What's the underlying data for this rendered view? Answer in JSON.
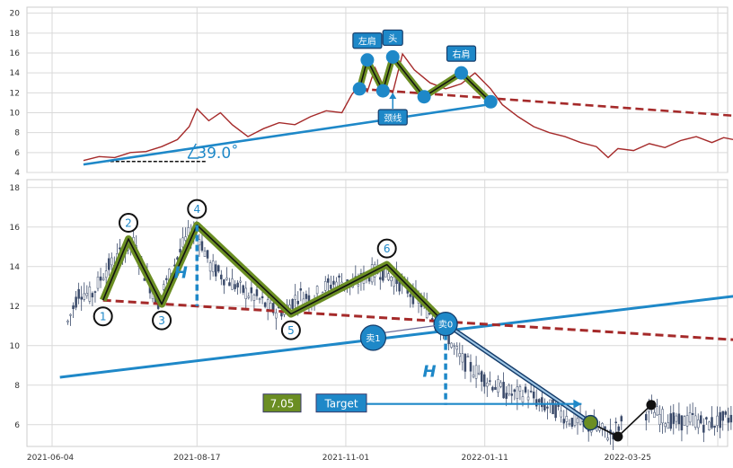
{
  "colors": {
    "price_line": "#a52a2a",
    "neckline": "#a52a2a",
    "trendline": "#1e88c8",
    "pattern_outer": "#6b8e23",
    "pattern_inner": "#111111",
    "candle_up": "#ffffff",
    "candle_down": "#3a4a6a",
    "grid": "#d9d9d9",
    "blue_label": "#1e88c8",
    "green_label": "#6b8e23"
  },
  "chart_data": [
    {
      "type": "line",
      "title": "",
      "x_range": [
        "2021-06-04",
        "2022-05-20"
      ],
      "ylim": [
        4,
        20
      ],
      "yticks": [
        "4",
        "6",
        "8",
        "10",
        "12",
        "14",
        "16",
        "18",
        "20"
      ],
      "grid": true,
      "series": [
        {
          "values": [
            [
              "2021-06-20",
              5.2
            ],
            [
              "2021-06-28",
              5.6
            ],
            [
              "2021-07-06",
              5.5
            ],
            [
              "2021-07-14",
              6.0
            ],
            [
              "2021-07-22",
              6.1
            ],
            [
              "2021-07-30",
              6.6
            ],
            [
              "2021-08-07",
              7.3
            ],
            [
              "2021-08-13",
              8.6
            ],
            [
              "2021-08-17",
              10.4
            ],
            [
              "2021-08-23",
              9.2
            ],
            [
              "2021-08-29",
              10.0
            ],
            [
              "2021-09-04",
              8.8
            ],
            [
              "2021-09-12",
              7.6
            ],
            [
              "2021-09-20",
              8.4
            ],
            [
              "2021-09-28",
              9.0
            ],
            [
              "2021-10-06",
              8.8
            ],
            [
              "2021-10-14",
              9.6
            ],
            [
              "2021-10-22",
              10.2
            ],
            [
              "2021-10-30",
              10.0
            ],
            [
              "2021-11-04",
              11.8
            ],
            [
              "2021-11-08",
              12.8
            ],
            [
              "2021-11-12",
              12.1
            ],
            [
              "2021-11-16",
              14.5
            ],
            [
              "2021-11-20",
              12.8
            ],
            [
              "2021-11-25",
              12.0
            ],
            [
              "2021-11-30",
              15.9
            ],
            [
              "2021-12-06",
              14.3
            ],
            [
              "2021-12-14",
              13.0
            ],
            [
              "2021-12-22",
              12.4
            ],
            [
              "2021-12-30",
              12.9
            ],
            [
              "2022-01-06",
              14.0
            ],
            [
              "2022-01-14",
              12.4
            ],
            [
              "2022-01-20",
              10.8
            ],
            [
              "2022-01-28",
              9.6
            ],
            [
              "2022-02-05",
              8.6
            ],
            [
              "2022-02-13",
              8.0
            ],
            [
              "2022-02-21",
              7.6
            ],
            [
              "2022-03-01",
              7.0
            ],
            [
              "2022-03-09",
              6.6
            ],
            [
              "2022-03-15",
              5.5
            ],
            [
              "2022-03-20",
              6.4
            ],
            [
              "2022-03-28",
              6.2
            ],
            [
              "2022-04-05",
              6.9
            ],
            [
              "2022-04-13",
              6.5
            ],
            [
              "2022-04-21",
              7.2
            ],
            [
              "2022-04-29",
              7.6
            ],
            [
              "2022-05-07",
              7.0
            ],
            [
              "2022-05-13",
              7.5
            ],
            [
              "2022-05-18",
              7.3
            ]
          ]
        }
      ],
      "pattern_points": [
        [
          "2021-11-08",
          12.4
        ],
        [
          "2021-11-12",
          15.3
        ],
        [
          "2021-11-20",
          12.2
        ],
        [
          "2021-11-25",
          15.6
        ],
        [
          "2021-12-11",
          11.6
        ],
        [
          "2021-12-30",
          14.0
        ],
        [
          "2022-01-14",
          11.1
        ]
      ],
      "neckline": [
        [
          "2021-11-08",
          12.4
        ],
        [
          "2022-05-18",
          9.7
        ]
      ],
      "trendline": [
        [
          "2021-06-20",
          4.8
        ],
        [
          "2022-01-12",
          10.8
        ]
      ],
      "base_line": [
        [
          "2021-07-01",
          5.1
        ],
        [
          "2021-08-22",
          5.1
        ]
      ],
      "annotations": [
        {
          "text": "左肩",
          "at": [
            "2021-11-12",
            15.3
          ]
        },
        {
          "text": "头",
          "at": [
            "2021-11-25",
            15.6
          ]
        },
        {
          "text": "右肩",
          "at": [
            "2021-12-30",
            14.0
          ]
        },
        {
          "text": "颈线",
          "at": [
            "2021-11-25",
            11.3
          ]
        }
      ],
      "angle_label": "39.0˚"
    },
    {
      "type": "candlestick",
      "title": "",
      "x_range": [
        "2021-06-04",
        "2022-05-20"
      ],
      "ylim": [
        4,
        18
      ],
      "yticks": [
        "6",
        "8",
        "10",
        "12",
        "14",
        "16",
        "18"
      ],
      "xticks": [
        "2021-06-04",
        "2021-08-17",
        "2021-11-01",
        "2022-01-11",
        "2022-03-25"
      ],
      "grid": true,
      "close_path": [
        [
          "2021-06-12",
          11.2
        ],
        [
          "2021-06-18",
          12.8
        ],
        [
          "2021-06-24",
          12.5
        ],
        [
          "2021-07-01",
          13.8
        ],
        [
          "2021-07-08",
          14.5
        ],
        [
          "2021-07-15",
          15.3
        ],
        [
          "2021-07-22",
          13.5
        ],
        [
          "2021-07-28",
          12.2
        ],
        [
          "2021-08-04",
          13.8
        ],
        [
          "2021-08-12",
          15.5
        ],
        [
          "2021-08-17",
          15.8
        ],
        [
          "2021-08-24",
          14.0
        ],
        [
          "2021-09-01",
          13.4
        ],
        [
          "2021-09-09",
          12.8
        ],
        [
          "2021-09-17",
          12.4
        ],
        [
          "2021-09-24",
          11.8
        ],
        [
          "2021-10-01",
          11.8
        ],
        [
          "2021-10-08",
          12.6
        ],
        [
          "2021-10-15",
          12.4
        ],
        [
          "2021-10-22",
          13.0
        ],
        [
          "2021-10-29",
          13.3
        ],
        [
          "2021-11-05",
          13.0
        ],
        [
          "2021-11-12",
          13.6
        ],
        [
          "2021-11-19",
          13.8
        ],
        [
          "2021-11-26",
          13.4
        ],
        [
          "2021-12-03",
          12.8
        ],
        [
          "2021-12-10",
          12.1
        ],
        [
          "2021-12-17",
          11.3
        ],
        [
          "2021-12-22",
          10.7
        ],
        [
          "2021-12-29",
          9.4
        ],
        [
          "2022-01-05",
          8.8
        ],
        [
          "2022-01-12",
          8.3
        ],
        [
          "2022-01-19",
          7.8
        ],
        [
          "2022-01-26",
          7.5
        ],
        [
          "2022-02-02",
          7.6
        ],
        [
          "2022-02-09",
          7.0
        ],
        [
          "2022-02-16",
          6.8
        ],
        [
          "2022-02-23",
          6.3
        ],
        [
          "2022-03-02",
          6.0
        ],
        [
          "2022-03-09",
          5.8
        ],
        [
          "2022-03-16",
          5.5
        ],
        [
          "2022-03-23",
          6.2
        ],
        [
          "2022-03-30",
          6.6
        ],
        [
          "2022-04-06",
          6.7
        ],
        [
          "2022-04-13",
          6.3
        ],
        [
          "2022-04-20",
          6.1
        ],
        [
          "2022-04-27",
          6.3
        ],
        [
          "2022-05-04",
          6.0
        ],
        [
          "2022-05-11",
          6.2
        ],
        [
          "2022-05-18",
          6.4
        ]
      ],
      "pattern_points": [
        [
          "2021-06-30",
          12.3
        ],
        [
          "2021-07-13",
          15.4
        ],
        [
          "2021-07-30",
          12.1
        ],
        [
          "2021-08-17",
          16.1
        ],
        [
          "2021-10-04",
          11.6
        ],
        [
          "2021-11-22",
          14.1
        ],
        [
          "2021-12-22",
          11.1
        ]
      ],
      "point_labels": [
        "1",
        "2",
        "3",
        "4",
        "5",
        "6",
        "卖0"
      ],
      "neckline": [
        [
          "2021-06-30",
          12.3
        ],
        [
          "2022-05-18",
          10.3
        ]
      ],
      "trendline": [
        [
          "2021-06-08",
          8.4
        ],
        [
          "2022-05-18",
          12.5
        ]
      ],
      "drop_path": [
        [
          "2021-12-22",
          11.1
        ],
        [
          "2022-03-06",
          6.1
        ]
      ],
      "after_points": [
        [
          "2022-03-20",
          5.4
        ],
        [
          "2022-04-06",
          7.0
        ]
      ],
      "measure_lines": [
        {
          "x": "2021-08-17",
          "from": 16.1,
          "to": 12.0,
          "label": "H"
        },
        {
          "x": "2021-12-22",
          "from": 11.1,
          "to": 7.0,
          "label": "H"
        }
      ],
      "sell1": {
        "label": "卖1",
        "at": [
          "2021-11-15",
          10.4
        ]
      },
      "target": {
        "value_label": "7.05",
        "label": "Target",
        "y": 7.05,
        "from": "2021-12-10",
        "to": "2022-03-06"
      }
    }
  ]
}
